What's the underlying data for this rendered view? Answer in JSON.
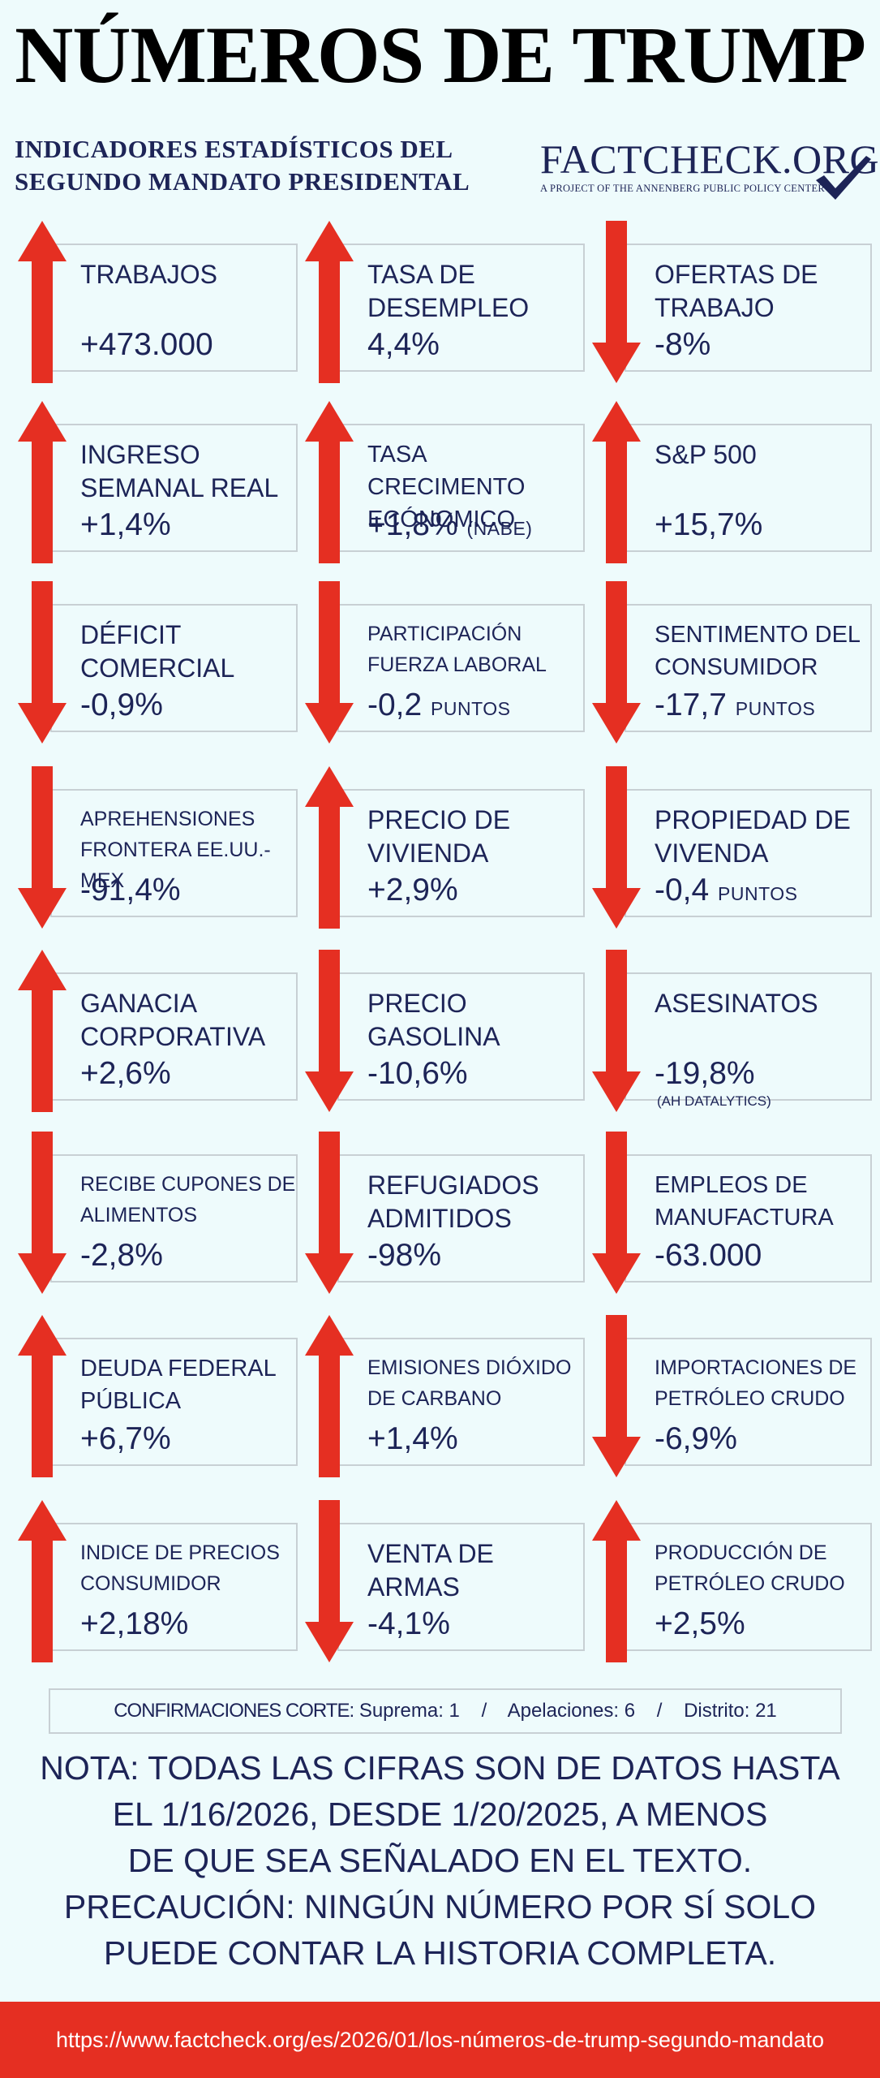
{
  "title": "NÚMEROS DE TRUMP",
  "subtitle": {
    "line1": "INDICADORES ESTADÍSTICOS DEL",
    "line2": "SEGUNDO MANDATO PRESIDENTAL"
  },
  "logo": {
    "main": "FACTCHECK.ORG",
    "sub": "A PROJECT OF THE ANNENBERG PUBLIC POLICY CENTER"
  },
  "colors": {
    "arrow": "#e52f22",
    "text": "#1d2457",
    "background": "#eefbfc"
  },
  "indicators": [
    {
      "label": "TRABAJOS",
      "value": "+473.000",
      "note": "",
      "direction": "up"
    },
    {
      "label": "TASA DE DESEMPLEO",
      "value": "4,4%",
      "note": "",
      "direction": "up"
    },
    {
      "label": "OFERTAS DE TRABAJO",
      "value": "-8%",
      "note": "",
      "direction": "down"
    },
    {
      "label": "INGRESO SEMANAL REAL",
      "value": "+1,4%",
      "note": "",
      "direction": "up"
    },
    {
      "label": "TASA CRECIMENTO ECÓNOMICO",
      "value": "+1,8%",
      "note": "(NABE)",
      "direction": "up"
    },
    {
      "label": "S&P 500",
      "value": "+15,7%",
      "note": "",
      "direction": "up"
    },
    {
      "label": "DÉFICIT COMERCIAL",
      "value": "-0,9%",
      "note": "",
      "direction": "down"
    },
    {
      "label": "PARTICIPACIÓN FUERZA LABORAL",
      "value": "-0,2",
      "note": "PUNTOS",
      "direction": "down"
    },
    {
      "label": "SENTIMENTO DEL CONSUMIDOR",
      "value": "-17,7",
      "note": "PUNTOS",
      "direction": "down"
    },
    {
      "label": "APREHENSIONES FRONTERA EE.UU.-MEX",
      "value": "-91,4%",
      "note": "",
      "direction": "down"
    },
    {
      "label": "PRECIO DE VIVIENDA",
      "value": "+2,9%",
      "note": "",
      "direction": "up"
    },
    {
      "label": "PROPIEDAD DE VIVENDA",
      "value": "-0,4",
      "note": "PUNTOS",
      "direction": "down"
    },
    {
      "label": "GANACIA CORPORATIVA",
      "value": "+2,6%",
      "note": "",
      "direction": "up"
    },
    {
      "label": "PRECIO GASOLINA",
      "value": "-10,6%",
      "note": "",
      "direction": "down"
    },
    {
      "label": "ASESINATOS",
      "value": "-19,8%",
      "note": "(AH DATALYTICS)",
      "direction": "down"
    },
    {
      "label": "RECIBE CUPONES DE ALIMENTOS",
      "value": "-2,8%",
      "note": "",
      "direction": "down"
    },
    {
      "label": "REFUGIADOS ADMITIDOS",
      "value": "-98%",
      "note": "",
      "direction": "down"
    },
    {
      "label": "EMPLEOS DE MANUFACTURA",
      "value": "-63.000",
      "note": "",
      "direction": "down"
    },
    {
      "label": "DEUDA FEDERAL PÚBLICA",
      "value": "+6,7%",
      "note": "",
      "direction": "up"
    },
    {
      "label": "EMISIONES DIÓXIDO DE CARBANO",
      "value": "+1,4%",
      "note": "",
      "direction": "up"
    },
    {
      "label": "IMPORTACIONES DE PETRÓLEO CRUDO",
      "value": "-6,9%",
      "note": "",
      "direction": "down"
    },
    {
      "label": "INDICE DE PRECIOS CONSUMIDOR",
      "value": "+2,18%",
      "note": "",
      "direction": "up"
    },
    {
      "label": "VENTA DE ARMAS",
      "value": "-4,1%",
      "note": "",
      "direction": "down"
    },
    {
      "label": "PRODUCCIÓN DE PETRÓLEO CRUDO",
      "value": "+2,5%",
      "note": "",
      "direction": "up"
    }
  ],
  "confirmations": {
    "label": "CONFIRMACIONES CORTE:",
    "supreme": "Suprema: 1",
    "appeals": "Apelaciones: 6",
    "district": "Distrito: 21",
    "separator": "/"
  },
  "footnote": {
    "line1": "NOTA: TODAS LAS CIFRAS SON DE DATOS HASTA",
    "line2": "EL 1/16/2026, DESDE 1/20/2025, A MENOS",
    "line3": "DE QUE SEA SEÑALADO EN EL TEXTO.",
    "line4": "PRECAUCIÓN: NINGÚN NÚMERO POR SÍ SOLO",
    "line5": "PUEDE CONTAR LA HISTORIA COMPLETA."
  },
  "footer_url": "https://www.factcheck.org/es/2026/01/los-números-de-trump-segundo-mandato"
}
